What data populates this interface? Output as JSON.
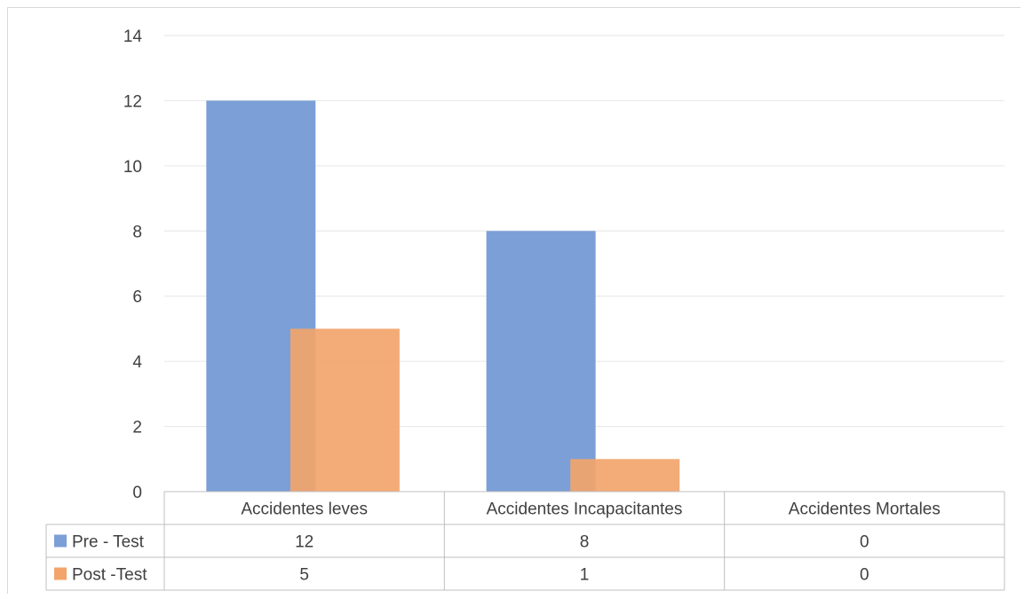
{
  "chart_data": {
    "type": "bar",
    "title": "",
    "xlabel": "",
    "ylabel": "",
    "categories": [
      "Accidentes leves",
      "Accidentes Incapacitantes",
      "Accidentes Mortales"
    ],
    "series": [
      {
        "name": "Pre - Test",
        "values": [
          12,
          8,
          0
        ],
        "color": "#7b9fd6"
      },
      {
        "name": "Post -Test",
        "values": [
          5,
          1,
          0
        ],
        "color": "#f2a46b"
      }
    ],
    "ylim": [
      0,
      14
    ],
    "yticks": [
      0,
      2,
      4,
      6,
      8,
      10,
      12,
      14
    ],
    "grid": true,
    "legend": "data-table-left",
    "data_table": true
  }
}
